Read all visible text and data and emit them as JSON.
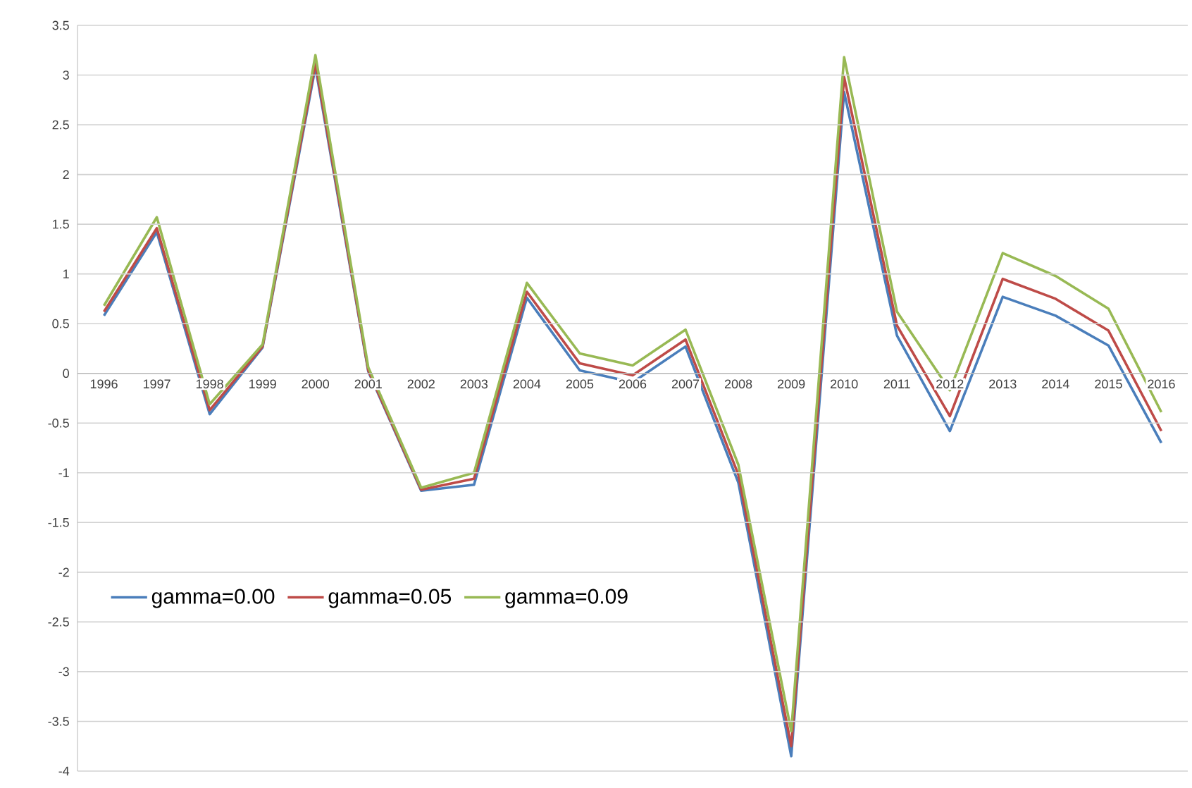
{
  "chart_data": {
    "type": "line",
    "categories": [
      "1996",
      "1997",
      "1998",
      "1999",
      "2000",
      "2001",
      "2002",
      "2003",
      "2004",
      "2005",
      "2006",
      "2007",
      "2008",
      "2009",
      "2010",
      "2011",
      "2012",
      "2013",
      "2014",
      "2015",
      "2016"
    ],
    "series": [
      {
        "name": "gamma=0.00",
        "color": "#4a7ebb",
        "values": [
          0.58,
          1.42,
          -0.41,
          0.26,
          3.08,
          0.02,
          -1.18,
          -1.12,
          0.76,
          0.03,
          -0.09,
          0.27,
          -1.1,
          -3.85,
          2.83,
          0.38,
          -0.58,
          0.77,
          0.58,
          0.28,
          -0.7
        ]
      },
      {
        "name": "gamma=0.05",
        "color": "#be4b48",
        "values": [
          0.62,
          1.46,
          -0.37,
          0.27,
          3.12,
          0.03,
          -1.17,
          -1.06,
          0.82,
          0.1,
          -0.02,
          0.34,
          -1.02,
          -3.75,
          2.98,
          0.48,
          -0.43,
          0.95,
          0.75,
          0.43,
          -0.58
        ]
      },
      {
        "name": "gamma=0.09",
        "color": "#98b954",
        "values": [
          0.68,
          1.57,
          -0.31,
          0.29,
          3.2,
          0.06,
          -1.15,
          -1.0,
          0.91,
          0.2,
          0.08,
          0.44,
          -0.92,
          -3.6,
          3.18,
          0.62,
          -0.17,
          1.21,
          0.98,
          0.65,
          -0.39
        ]
      }
    ],
    "ylim": [
      -4,
      3.5
    ],
    "yticks": [
      -4,
      -3.5,
      -3,
      -2.5,
      -2,
      -1.5,
      -1,
      -0.5,
      0,
      0.5,
      1,
      1.5,
      2,
      2.5,
      3,
      3.5
    ],
    "grid": "y",
    "legend": "left",
    "line_style": "solid",
    "marker": "none"
  }
}
